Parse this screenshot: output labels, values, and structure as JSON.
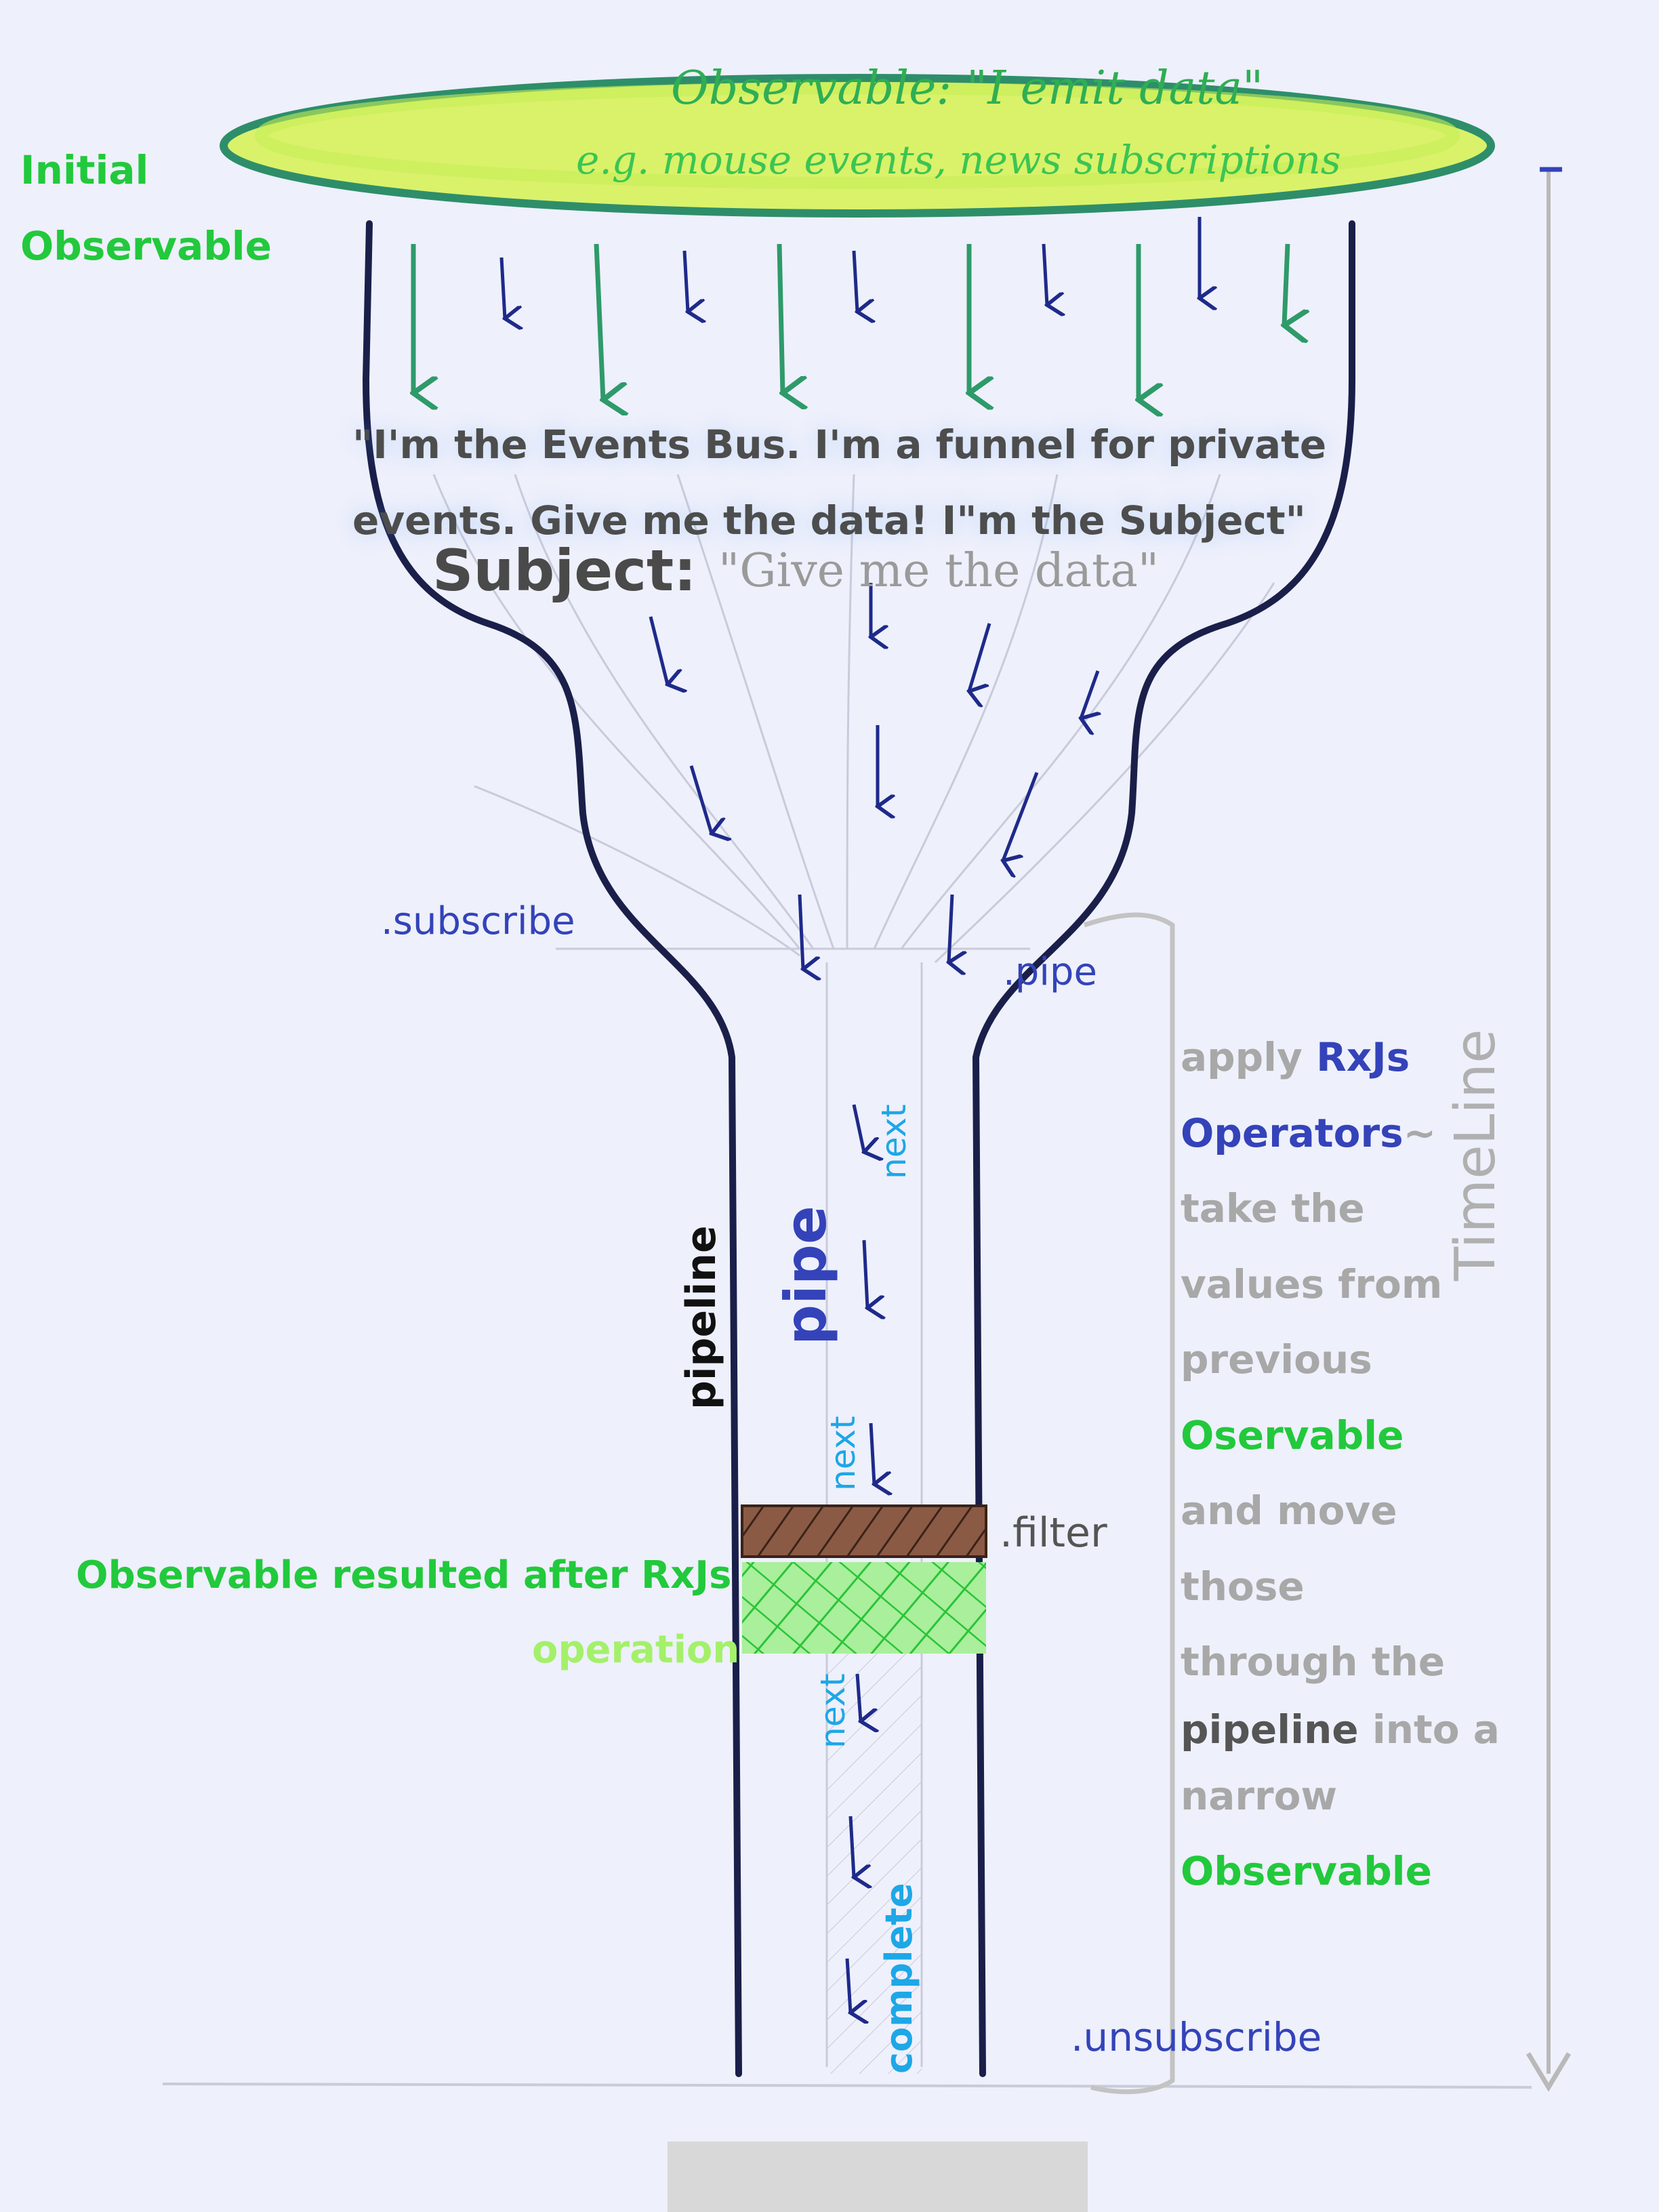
{
  "observable": {
    "title": "Observable: \"I emit data\"",
    "examples": "e.g. mouse events, news subscriptions"
  },
  "initial_observable": "Initial\nObservable",
  "events_bus_quote": "\"I'm the Events Bus. I'm a funnel for private events. Give me the data! I\"m the Subject\"",
  "subject": {
    "label": "Subject:",
    "quote": "\"Give me the data\""
  },
  "methods": {
    "subscribe": ".subscribe",
    "pipe": ".pipe",
    "filter": ".filter",
    "unsubscribe": ".unsubscribe"
  },
  "notifications": {
    "next": "next",
    "complete": "complete"
  },
  "pipe_label": "pipe",
  "pipeline_label": "pipeline",
  "resulted_observable": {
    "line1": "Observable resulted after RxJs",
    "line2": "operation"
  },
  "timeline_label": "TimeLine",
  "timeline_tilde": "~",
  "explanation": [
    {
      "text": "apply ",
      "emph": "RxJs"
    },
    {
      "emph": "Operators"
    },
    {
      "text": "take the"
    },
    {
      "text": "values from"
    },
    {
      "text": "previous"
    },
    {
      "green": "Oservable"
    },
    {
      "text": "and move"
    },
    {
      "text": "those"
    },
    {
      "text": "through the"
    },
    {
      "dark": "pipeline",
      "text": " into a"
    },
    {
      "text": "narrow"
    },
    {
      "green": "Observable"
    }
  ],
  "colors": {
    "observable_fill": "#d9f26a",
    "observable_border": "#2e8e6a",
    "funnel_outline": "#1a1f4a",
    "arrow": "#1e2a8a",
    "green_text": "#22c93c",
    "blue_text": "#3443b9",
    "filter_band": "#7a4a33",
    "result_band": "#33d13a",
    "timeline": "#b9b9b9"
  }
}
